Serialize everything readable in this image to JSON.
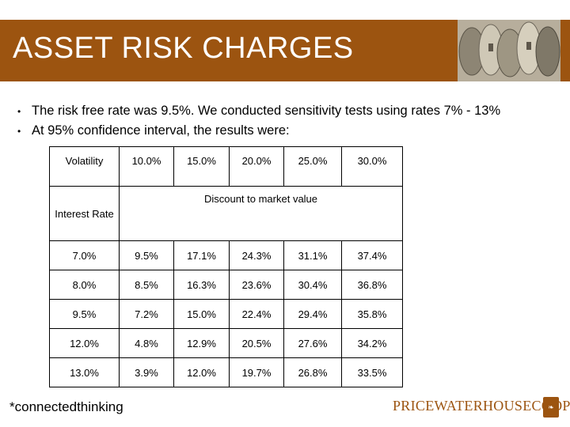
{
  "title": "ASSET RISK CHARGES",
  "bullets": [
    "The risk free rate was 9.5%. We conducted sensitivity tests using rates 7% - 13%",
    "At 95% confidence interval, the results were:"
  ],
  "table": {
    "corner_label": "Volatility",
    "row_header_label": "Interest Rate",
    "subheader": "Discount to market value",
    "volatility_columns": [
      "10.0%",
      "15.0%",
      "20.0%",
      "25.0%",
      "30.0%"
    ],
    "rows": [
      {
        "rate": "7.0%",
        "values": [
          "9.5%",
          "17.1%",
          "24.3%",
          "31.1%",
          "37.4%"
        ]
      },
      {
        "rate": "8.0%",
        "values": [
          "8.5%",
          "16.3%",
          "23.6%",
          "30.4%",
          "36.8%"
        ]
      },
      {
        "rate": "9.5%",
        "values": [
          "7.2%",
          "15.0%",
          "22.4%",
          "29.4%",
          "35.8%"
        ]
      },
      {
        "rate": "12.0%",
        "values": [
          "4.8%",
          "12.9%",
          "20.5%",
          "27.6%",
          "34.2%"
        ]
      },
      {
        "rate": "13.0%",
        "values": [
          "3.9%",
          "12.0%",
          "19.7%",
          "26.8%",
          "33.5%"
        ]
      }
    ]
  },
  "footer": {
    "tagline": "*connectedthinking",
    "brand": "PRICEWATERHOUSECOOPERS"
  },
  "colors": {
    "title_band": "#9c5410",
    "brand": "#9c5410"
  },
  "icons": [
    "coins-image",
    "pwc-seal-logo"
  ]
}
